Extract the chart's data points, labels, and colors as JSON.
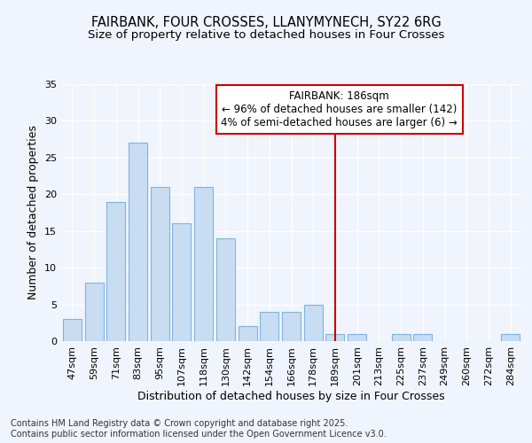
{
  "title1": "FAIRBANK, FOUR CROSSES, LLANYMYNECH, SY22 6RG",
  "title2": "Size of property relative to detached houses in Four Crosses",
  "xlabel": "Distribution of detached houses by size in Four Crosses",
  "ylabel": "Number of detached properties",
  "categories": [
    "47sqm",
    "59sqm",
    "71sqm",
    "83sqm",
    "95sqm",
    "107sqm",
    "118sqm",
    "130sqm",
    "142sqm",
    "154sqm",
    "166sqm",
    "178sqm",
    "189sqm",
    "201sqm",
    "213sqm",
    "225sqm",
    "237sqm",
    "249sqm",
    "260sqm",
    "272sqm",
    "284sqm"
  ],
  "values": [
    3,
    8,
    19,
    27,
    21,
    16,
    21,
    14,
    2,
    4,
    4,
    5,
    1,
    1,
    0,
    1,
    1,
    0,
    0,
    0,
    1
  ],
  "bar_color": "#c9ddf2",
  "bar_edge_color": "#7fb3e0",
  "vline_x_index": 12,
  "vline_color": "#cc0000",
  "annotation_text": "FAIRBANK: 186sqm\n← 96% of detached houses are smaller (142)\n4% of semi-detached houses are larger (6) →",
  "annotation_box_color": "#ffffff",
  "annotation_box_edge": "#cc0000",
  "ylim": [
    0,
    35
  ],
  "yticks": [
    0,
    5,
    10,
    15,
    20,
    25,
    30,
    35
  ],
  "background_color": "#f0f4fc",
  "grid_color": "#ffffff",
  "footer": "Contains HM Land Registry data © Crown copyright and database right 2025.\nContains public sector information licensed under the Open Government Licence v3.0.",
  "title_fontsize": 10.5,
  "subtitle_fontsize": 9.5,
  "axis_label_fontsize": 9,
  "tick_fontsize": 8,
  "footer_fontsize": 7,
  "annotation_fontsize": 8.5
}
